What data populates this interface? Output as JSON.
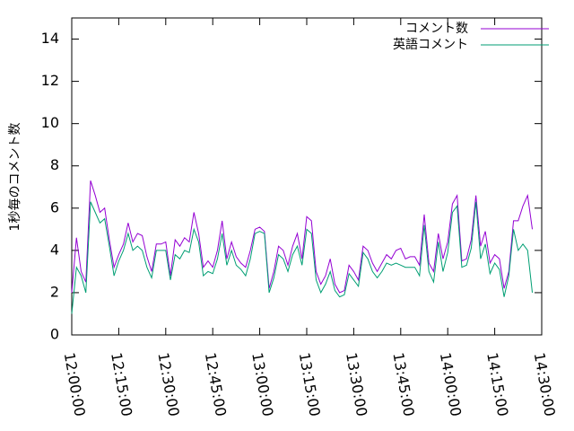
{
  "chart_data": {
    "type": "line",
    "ylabel": "1秒毎のコメント数",
    "legend": "top-right",
    "xlim": [
      "12:00:00",
      "14:30:00"
    ],
    "xticks": [
      "12:00:00",
      "12:15:00",
      "12:30:00",
      "12:45:00",
      "13:00:00",
      "13:15:00",
      "13:30:00",
      "13:45:00",
      "14:00:00",
      "14:15:00",
      "14:30:00"
    ],
    "ylim": [
      0,
      15
    ],
    "yticks": [
      0,
      2,
      4,
      6,
      8,
      10,
      12,
      14
    ],
    "x": [
      "12:00:00",
      "12:01:30",
      "12:03:00",
      "12:04:30",
      "12:06:00",
      "12:07:30",
      "12:09:00",
      "12:10:30",
      "12:12:00",
      "12:13:30",
      "12:15:00",
      "12:16:30",
      "12:18:00",
      "12:19:30",
      "12:21:00",
      "12:22:30",
      "12:24:00",
      "12:25:30",
      "12:27:00",
      "12:28:30",
      "12:30:00",
      "12:31:30",
      "12:33:00",
      "12:34:30",
      "12:36:00",
      "12:37:30",
      "12:39:00",
      "12:40:30",
      "12:42:00",
      "12:43:30",
      "12:45:00",
      "12:46:30",
      "12:48:00",
      "12:49:30",
      "12:51:00",
      "12:52:30",
      "12:54:00",
      "12:55:30",
      "12:57:00",
      "12:58:30",
      "13:00:00",
      "13:01:30",
      "13:03:00",
      "13:04:30",
      "13:06:00",
      "13:07:30",
      "13:09:00",
      "13:10:30",
      "13:12:00",
      "13:13:30",
      "13:15:00",
      "13:16:30",
      "13:18:00",
      "13:19:30",
      "13:21:00",
      "13:22:30",
      "13:24:00",
      "13:25:30",
      "13:27:00",
      "13:28:30",
      "13:30:00",
      "13:31:30",
      "13:33:00",
      "13:34:30",
      "13:36:00",
      "13:37:30",
      "13:39:00",
      "13:40:30",
      "13:42:00",
      "13:43:30",
      "13:45:00",
      "13:46:30",
      "13:48:00",
      "13:49:30",
      "13:51:00",
      "13:52:30",
      "13:54:00",
      "13:55:30",
      "13:57:00",
      "13:58:30",
      "14:00:00",
      "14:01:30",
      "14:03:00",
      "14:04:30",
      "14:06:00",
      "14:07:30",
      "14:09:00",
      "14:10:30",
      "14:12:00",
      "14:13:30",
      "14:15:00",
      "14:16:30",
      "14:18:00",
      "14:19:30",
      "14:21:00",
      "14:22:30",
      "14:24:00",
      "14:25:30",
      "14:27:00"
    ],
    "series": [
      {
        "name": "コメント数",
        "color": "#9400d3",
        "values": [
          2.0,
          4.6,
          3.0,
          2.5,
          7.3,
          6.6,
          5.8,
          6.0,
          4.5,
          3.2,
          3.8,
          4.3,
          5.3,
          4.4,
          4.8,
          4.7,
          3.7,
          3.0,
          4.3,
          4.3,
          4.4,
          2.8,
          4.5,
          4.2,
          4.6,
          4.4,
          5.8,
          4.8,
          3.2,
          3.5,
          3.2,
          4.0,
          5.4,
          3.6,
          4.4,
          3.7,
          3.4,
          3.2,
          4.0,
          5.0,
          5.1,
          4.9,
          2.2,
          3.0,
          4.2,
          4.0,
          3.3,
          4.2,
          4.8,
          3.6,
          5.6,
          5.4,
          3.0,
          2.4,
          2.8,
          3.6,
          2.4,
          2.0,
          2.1,
          3.3,
          3.0,
          2.6,
          4.2,
          4.0,
          3.4,
          3.0,
          3.4,
          3.8,
          3.6,
          4.0,
          4.1,
          3.6,
          3.7,
          3.7,
          3.3,
          5.7,
          3.4,
          3.0,
          4.8,
          3.6,
          4.4,
          6.2,
          6.6,
          3.5,
          3.6,
          4.5,
          6.6,
          4.2,
          4.9,
          3.4,
          3.8,
          3.6,
          2.2,
          3.0,
          5.4,
          5.4,
          6.1,
          6.6,
          5.0
        ]
      },
      {
        "name": "英語コメント",
        "color": "#009e73",
        "values": [
          1.0,
          3.2,
          2.8,
          2.0,
          6.3,
          5.8,
          5.3,
          5.5,
          4.2,
          2.8,
          3.5,
          4.0,
          4.8,
          4.0,
          4.2,
          4.0,
          3.2,
          2.7,
          4.0,
          4.0,
          4.0,
          2.6,
          3.8,
          3.6,
          4.0,
          3.9,
          5.0,
          4.4,
          2.8,
          3.0,
          2.9,
          3.6,
          4.8,
          3.3,
          4.0,
          3.3,
          3.1,
          2.8,
          3.6,
          4.8,
          4.9,
          4.8,
          2.0,
          2.7,
          3.8,
          3.6,
          3.0,
          3.8,
          4.2,
          3.3,
          5.0,
          4.8,
          2.6,
          2.0,
          2.4,
          3.0,
          2.1,
          1.8,
          1.9,
          2.9,
          2.6,
          2.3,
          3.9,
          3.6,
          3.0,
          2.7,
          3.0,
          3.4,
          3.3,
          3.4,
          3.3,
          3.2,
          3.2,
          3.2,
          2.8,
          5.2,
          3.0,
          2.5,
          4.4,
          3.0,
          3.9,
          5.8,
          6.1,
          3.2,
          3.3,
          4.1,
          6.3,
          3.6,
          4.3,
          2.9,
          3.4,
          3.1,
          1.8,
          2.8,
          5.0,
          4.0,
          4.3,
          4.0,
          2.0
        ]
      }
    ]
  }
}
